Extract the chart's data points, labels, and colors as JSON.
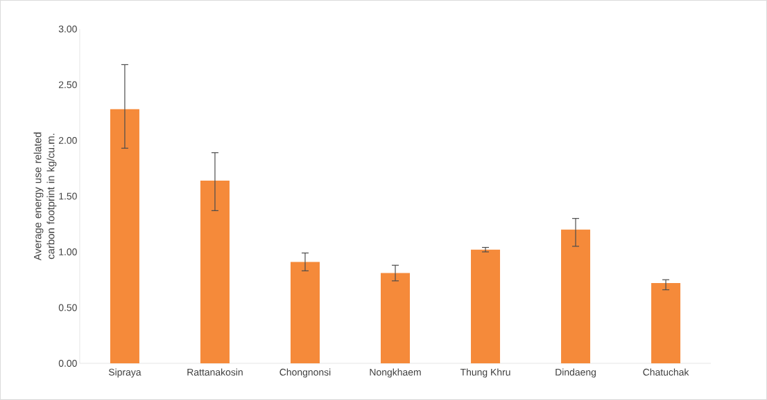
{
  "chart_data": {
    "type": "bar",
    "ylabel": "Average energy use related carbon footprint in kg/cu.m.",
    "categories": [
      "Sipraya",
      "Rattanakosin",
      "Chongnonsi",
      "Nongkhaem",
      "Thung Khru",
      "Dindaeng",
      "Chatuchak"
    ],
    "values": [
      2.28,
      1.64,
      0.91,
      0.81,
      1.02,
      1.2,
      0.72
    ],
    "errors": [
      [
        1.93,
        2.68
      ],
      [
        1.37,
        1.89
      ],
      [
        0.83,
        0.99
      ],
      [
        0.74,
        0.88
      ],
      [
        1.0,
        1.04
      ],
      [
        1.05,
        1.3
      ],
      [
        0.66,
        0.75
      ]
    ],
    "color": "#f58a3a",
    "ylim": [
      0,
      3
    ],
    "yticks": [
      {
        "value": 0,
        "label": "0.00"
      },
      {
        "value": 0.5,
        "label": "0.50"
      },
      {
        "value": 1,
        "label": "1.00"
      },
      {
        "value": 1.5,
        "label": "1.50"
      },
      {
        "value": 2,
        "label": "2.00"
      },
      {
        "value": 2.5,
        "label": "2.50"
      },
      {
        "value": 3,
        "label": "3.00"
      }
    ],
    "grid": false
  }
}
